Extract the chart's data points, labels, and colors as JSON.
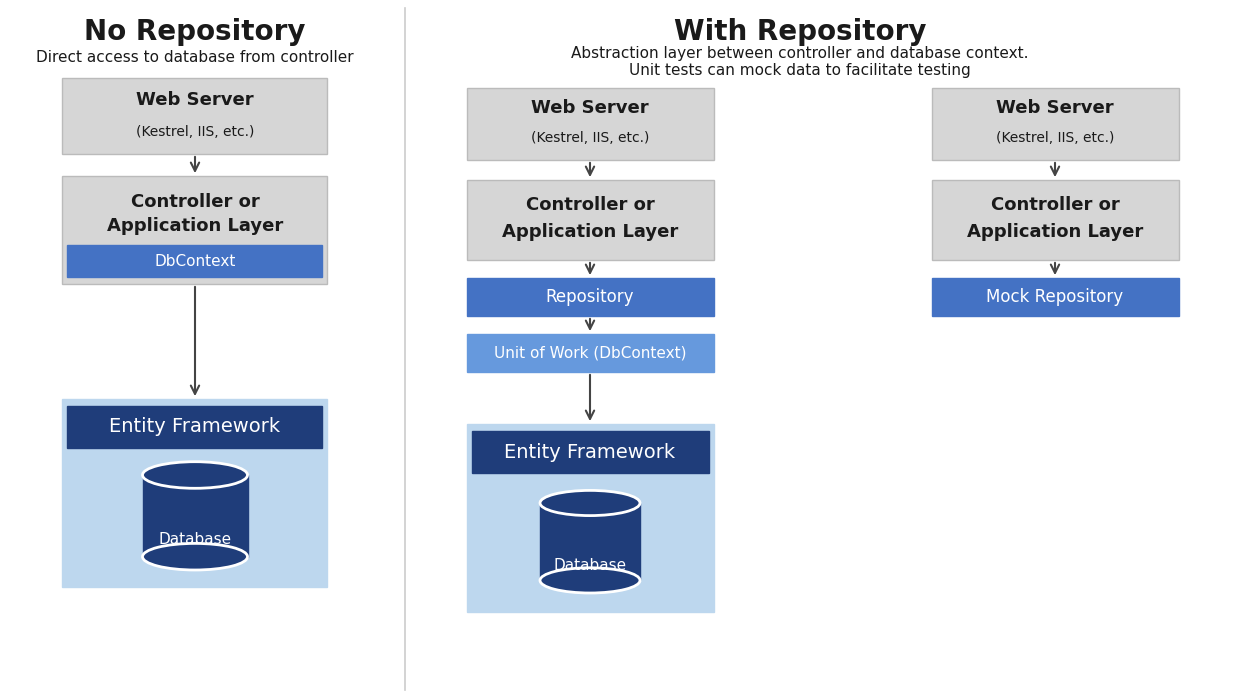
{
  "bg_color": "#ffffff",
  "title_left": "No Repository",
  "subtitle_left": "Direct access to database from controller",
  "title_right": "With Repository",
  "subtitle_right": "Abstraction layer between controller and database context.\nUnit tests can mock data to facilitate testing",
  "color_gray_box": "#d6d6d6",
  "color_gray_border": "#bbbbbb",
  "color_blue_bright": "#4472c4",
  "color_blue_medium": "#6699dd",
  "color_navy_box": "#1f3d7a",
  "color_light_blue_bg": "#bdd7ee",
  "color_white_text": "#ffffff",
  "color_dark_text": "#1a1a1a",
  "fig_w": 12.34,
  "fig_h": 6.98,
  "dpi": 100
}
